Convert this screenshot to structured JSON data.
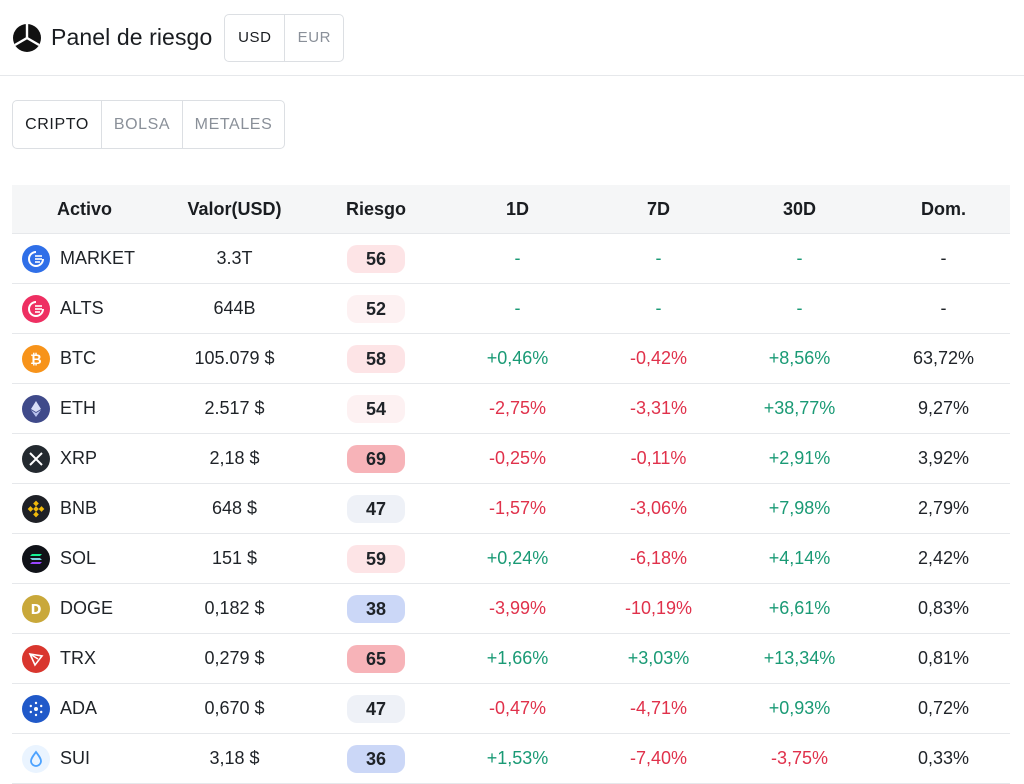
{
  "header": {
    "title": "Panel de riesgo",
    "currencies": [
      {
        "label": "USD",
        "active": true
      },
      {
        "label": "EUR",
        "active": false
      }
    ]
  },
  "tabs": [
    {
      "label": "CRIPTO",
      "active": true
    },
    {
      "label": "BOLSA",
      "active": false
    },
    {
      "label": "METALES",
      "active": false
    }
  ],
  "table": {
    "columns": [
      "Activo",
      "Valor(USD)",
      "Riesgo",
      "1D",
      "7D",
      "30D",
      "Dom."
    ],
    "rows": [
      {
        "asset": "MARKET",
        "icon": "market-icon",
        "value": "3.3T",
        "risk": "56",
        "d1": "-",
        "d7": "-",
        "d30": "-",
        "dom": "-"
      },
      {
        "asset": "ALTS",
        "icon": "alts-icon",
        "value": "644B",
        "risk": "52",
        "d1": "-",
        "d7": "-",
        "d30": "-",
        "dom": "-"
      },
      {
        "asset": "BTC",
        "icon": "bitcoin-icon",
        "value": "105.079 $",
        "risk": "58",
        "d1": "+0,46%",
        "d7": "-0,42%",
        "d30": "+8,56%",
        "dom": "63,72%"
      },
      {
        "asset": "ETH",
        "icon": "ethereum-icon",
        "value": "2.517 $",
        "risk": "54",
        "d1": "-2,75%",
        "d7": "-3,31%",
        "d30": "+38,77%",
        "dom": "9,27%"
      },
      {
        "asset": "XRP",
        "icon": "xrp-icon",
        "value": "2,18 $",
        "risk": "69",
        "d1": "-0,25%",
        "d7": "-0,11%",
        "d30": "+2,91%",
        "dom": "3,92%"
      },
      {
        "asset": "BNB",
        "icon": "bnb-icon",
        "value": "648 $",
        "risk": "47",
        "d1": "-1,57%",
        "d7": "-3,06%",
        "d30": "+7,98%",
        "dom": "2,79%"
      },
      {
        "asset": "SOL",
        "icon": "solana-icon",
        "value": "151 $",
        "risk": "59",
        "d1": "+0,24%",
        "d7": "-6,18%",
        "d30": "+4,14%",
        "dom": "2,42%"
      },
      {
        "asset": "DOGE",
        "icon": "dogecoin-icon",
        "value": "0,182 $",
        "risk": "38",
        "d1": "-3,99%",
        "d7": "-10,19%",
        "d30": "+6,61%",
        "dom": "0,83%"
      },
      {
        "asset": "TRX",
        "icon": "tron-icon",
        "value": "0,279 $",
        "risk": "65",
        "d1": "+1,66%",
        "d7": "+3,03%",
        "d30": "+13,34%",
        "dom": "0,81%"
      },
      {
        "asset": "ADA",
        "icon": "cardano-icon",
        "value": "0,670 $",
        "risk": "47",
        "d1": "-0,47%",
        "d7": "-4,71%",
        "d30": "+0,93%",
        "dom": "0,72%"
      },
      {
        "asset": "SUI",
        "icon": "sui-icon",
        "value": "3,18 $",
        "risk": "36",
        "d1": "+1,53%",
        "d7": "-7,40%",
        "d30": "-3,75%",
        "dom": "0,33%"
      }
    ]
  },
  "colors": {
    "positive": "#1a9a75",
    "negative": "#e0314b",
    "risk_high": "#f7b3b8",
    "risk_mid": "#fde4e6",
    "risk_low_mid": "#fdf1f2",
    "risk_neutral": "#eef1f7",
    "risk_low": "#cbd7f7"
  }
}
